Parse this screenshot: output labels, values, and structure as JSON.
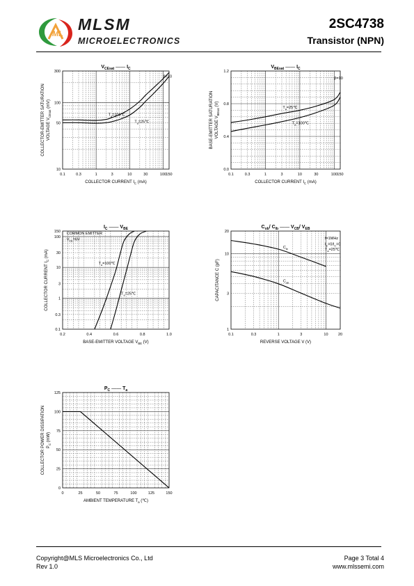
{
  "header": {
    "brand": "MLSM",
    "brand_sub": "MICROELECTRONICS",
    "part_number": "2SC4738",
    "part_type": "Transistor  (NPN)"
  },
  "footer": {
    "copyright": "Copyright@MLS Microelectronics Co., Ltd",
    "revision": "Rev 1.0",
    "page": "Page 3 Total 4",
    "website": "www.mlssemi.com"
  },
  "colors": {
    "line": "#000000",
    "grid": "#666666",
    "logo_green": "#2f9a3d",
    "logo_red": "#d9241c",
    "logo_orange": "#f2a23a"
  },
  "chart_data": [
    {
      "id": "vcesat",
      "type": "line",
      "title": [
        "V",
        "CEsat",
        "—",
        "I",
        "C"
      ],
      "xlabel": [
        "COLLECTOR CURRENT   I",
        "C",
        "   (mA)"
      ],
      "ylabel": [
        "COLLECTOR-EMITTER SATURATION",
        "VOLTAGE   V",
        "CEsat",
        "   (mV)"
      ],
      "x_scale": "log",
      "y_scale": "log",
      "xlim": [
        0.1,
        150
      ],
      "ylim": [
        10,
        300
      ],
      "xticks": [
        0.1,
        0.3,
        1,
        3,
        10,
        30,
        100,
        150
      ],
      "xtick_labels": [
        "0.1",
        "0.3",
        "1",
        "3",
        "10",
        "30",
        "100",
        "150"
      ],
      "yticks": [
        10,
        50,
        100,
        300
      ],
      "ytick_labels": [
        "10",
        "50",
        "100",
        "300"
      ],
      "annotations": [
        {
          "text": "β=10",
          "x": 100,
          "y": 240
        }
      ],
      "series": [
        {
          "label": "Ta=100℃",
          "label_at": [
            2.3,
            63
          ],
          "x": [
            0.1,
            0.3,
            1,
            2,
            3,
            5,
            10,
            20,
            30,
            50,
            100,
            150
          ],
          "y": [
            55,
            55,
            54,
            56,
            60,
            66,
            80,
            105,
            130,
            165,
            230,
            285
          ]
        },
        {
          "label": "Ta=25℃",
          "label_at": [
            14,
            50
          ],
          "x": [
            0.1,
            0.3,
            1,
            2,
            3,
            5,
            10,
            20,
            30,
            50,
            100,
            150
          ],
          "y": [
            50,
            50,
            49,
            50,
            52,
            56,
            65,
            85,
            105,
            135,
            195,
            250
          ]
        }
      ]
    },
    {
      "id": "vbesat",
      "type": "line",
      "title": [
        "V",
        "BEsat",
        "—",
        "I",
        "C"
      ],
      "xlabel": [
        "COLLECTOR CURRENT   I",
        "C",
        "   (mA)"
      ],
      "ylabel": [
        "BASE-EMITTER SATURATION",
        "VOLTAGE   V",
        "BEsat",
        "   (V)"
      ],
      "x_scale": "log",
      "y_scale": "linear",
      "xlim": [
        0.1,
        150
      ],
      "ylim": [
        0.0,
        1.2
      ],
      "xticks": [
        0.1,
        0.3,
        1,
        3,
        10,
        30,
        100,
        150
      ],
      "xtick_labels": [
        "0.1",
        "0.3",
        "1",
        "3",
        "10",
        "30",
        "100",
        "150"
      ],
      "yticks": [
        0.0,
        0.4,
        0.8,
        1.2
      ],
      "ytick_labels": [
        "0.0",
        "0.4",
        "0.8",
        "1.2"
      ],
      "annotations": [
        {
          "text": "β=10",
          "x": 100,
          "y": 1.1
        }
      ],
      "series": [
        {
          "label": "Ta=25℃",
          "label_at": [
            3.2,
            0.74
          ],
          "x": [
            0.1,
            0.3,
            1,
            3,
            10,
            30,
            100,
            150
          ],
          "y": [
            0.57,
            0.6,
            0.64,
            0.68,
            0.72,
            0.77,
            0.85,
            0.94
          ]
        },
        {
          "label": "Ta=100℃",
          "label_at": [
            6,
            0.55
          ],
          "x": [
            0.1,
            0.3,
            1,
            3,
            10,
            30,
            100,
            150
          ],
          "y": [
            0.46,
            0.5,
            0.54,
            0.58,
            0.63,
            0.69,
            0.78,
            0.88
          ]
        }
      ]
    },
    {
      "id": "ic_vbe",
      "type": "line",
      "title": [
        "I",
        "C",
        "—",
        "V",
        "BE"
      ],
      "xlabel": [
        "BASE-EMITTER VOLTAGE   V",
        "BE",
        "   (V)"
      ],
      "ylabel": [
        "COLLECTOR CURRENT   I",
        "C",
        "   (mA)"
      ],
      "x_scale": "linear",
      "y_scale": "log",
      "xlim": [
        0.2,
        1.0
      ],
      "ylim": [
        0.1,
        150
      ],
      "xticks": [
        0.2,
        0.4,
        0.6,
        0.8,
        1.0
      ],
      "xtick_labels": [
        "0.2",
        "0.4",
        "0.6",
        "0.8",
        "1.0"
      ],
      "yticks": [
        0.1,
        0.3,
        1,
        3,
        10,
        30,
        100,
        150
      ],
      "ytick_labels": [
        "0.1",
        "0.3",
        "1",
        "3",
        "10",
        "30",
        "100",
        "150"
      ],
      "annotations": [
        {
          "text": "COMMON EMITTER",
          "x": 0.23,
          "y": 115
        },
        {
          "text": "VCE=6V",
          "x": 0.23,
          "y": 75
        }
      ],
      "series": [
        {
          "label": "Ta=100℃",
          "label_at": [
            0.47,
            12.5
          ],
          "x": [
            0.44,
            0.5,
            0.55,
            0.6,
            0.63,
            0.66,
            0.7,
            0.74
          ],
          "y": [
            0.1,
            0.45,
            1.8,
            8,
            25,
            70,
            120,
            150
          ]
        },
        {
          "label": "Ta=25℃",
          "label_at": [
            0.64,
            1.3
          ],
          "x": [
            0.56,
            0.6,
            0.64,
            0.68,
            0.71,
            0.74,
            0.78,
            0.83
          ],
          "y": [
            0.1,
            0.4,
            1.8,
            8,
            25,
            70,
            120,
            150
          ]
        }
      ]
    },
    {
      "id": "cap_v",
      "type": "line",
      "title": [
        "C",
        "ob",
        "/ C",
        "ib",
        "—",
        "V",
        "CB",
        "/ V",
        "EB"
      ],
      "xlabel": [
        "REVERSE VOLTAGE   V   (V)"
      ],
      "ylabel": [
        "CAPACITANCE   C   (pF)"
      ],
      "x_scale": "log",
      "y_scale": "log",
      "xlim": [
        0.1,
        20
      ],
      "ylim": [
        1,
        20
      ],
      "xticks": [
        0.1,
        0.3,
        1,
        3,
        10,
        20
      ],
      "xtick_labels": [
        "0.1",
        "0.3",
        "1",
        "3",
        "10",
        "20"
      ],
      "yticks": [
        1,
        3,
        10,
        20
      ],
      "ytick_labels": [
        "1",
        "3",
        "10",
        "20"
      ],
      "annotations": [
        {
          "text": "f=1MHz",
          "x": 9.5,
          "y": 15.5
        },
        {
          "text": "IE=0/IC=0",
          "x": 9.5,
          "y": 13
        },
        {
          "text": "Ta=25℃",
          "x": 9.5,
          "y": 11
        }
      ],
      "series": [
        {
          "label": "Cib",
          "label_at": [
            1.25,
            11.8
          ],
          "x": [
            0.1,
            0.3,
            1,
            3,
            10
          ],
          "y": [
            15,
            13.5,
            11.5,
            9,
            6.8
          ]
        },
        {
          "label": "Cob",
          "label_at": [
            1.25,
            4.2
          ],
          "x": [
            0.1,
            0.3,
            1,
            3,
            10,
            20
          ],
          "y": [
            5.8,
            5,
            4,
            3,
            2.2,
            1.9
          ]
        }
      ]
    },
    {
      "id": "pc_ta",
      "type": "line",
      "title": [
        "P",
        "C",
        "—",
        "T",
        "a"
      ],
      "xlabel": [
        "AMBIENT TEMPERATURE   T",
        "a",
        "   (℃)"
      ],
      "ylabel": [
        "COLLECTOR POWER DISSIPATION",
        "P",
        "C",
        "   (mW)"
      ],
      "x_scale": "linear",
      "y_scale": "linear",
      "xlim": [
        0,
        150
      ],
      "ylim": [
        0,
        125
      ],
      "xticks": [
        0,
        25,
        50,
        75,
        100,
        125,
        150
      ],
      "xtick_labels": [
        "0",
        "25",
        "50",
        "75",
        "100",
        "125",
        "150"
      ],
      "yticks": [
        0,
        25,
        50,
        75,
        100,
        125
      ],
      "ytick_labels": [
        "0",
        "25",
        "50",
        "75",
        "100",
        "125"
      ],
      "annotations": [],
      "series": [
        {
          "label": "",
          "x": [
            0,
            25,
            150
          ],
          "y": [
            100,
            100,
            0
          ]
        }
      ]
    }
  ]
}
